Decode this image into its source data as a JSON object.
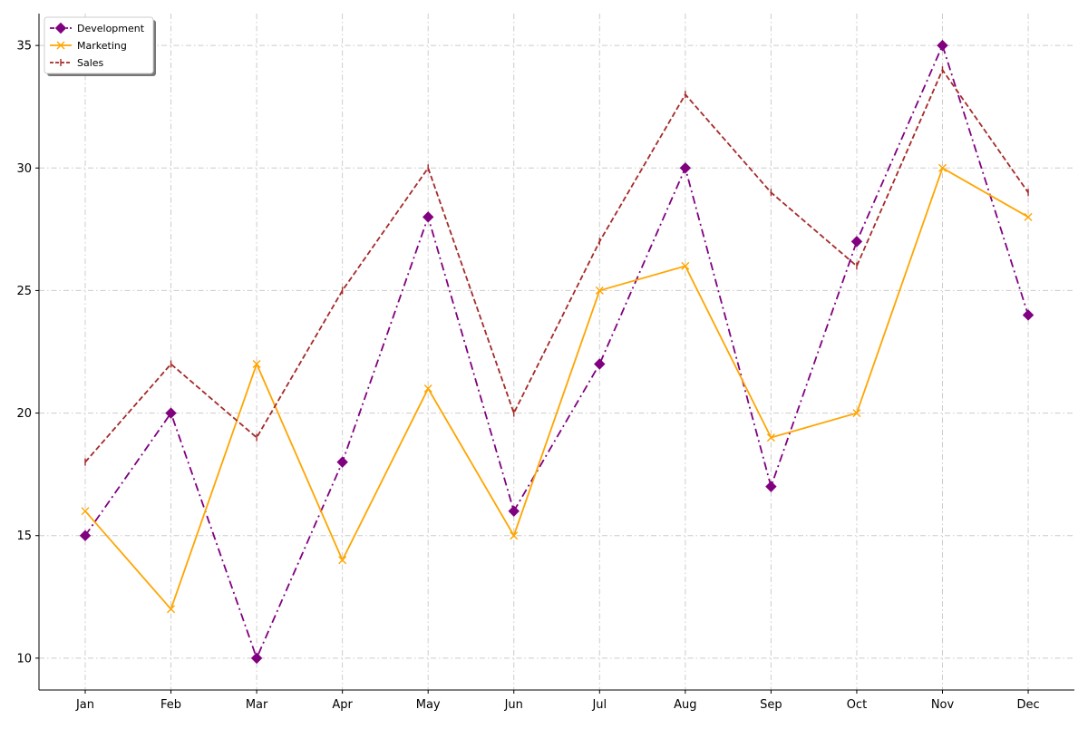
{
  "chart_data": {
    "type": "line",
    "categories": [
      "Jan",
      "Feb",
      "Mar",
      "Apr",
      "May",
      "Jun",
      "Jul",
      "Aug",
      "Sep",
      "Oct",
      "Nov",
      "Dec"
    ],
    "y_ticks": [
      10,
      15,
      20,
      25,
      30,
      35
    ],
    "ylim": [
      8.7,
      36.3
    ],
    "grid": true,
    "legend_position": "top-left",
    "series": [
      {
        "name": "Development",
        "color": "#800080",
        "marker": "diamond",
        "line_style": "dash-dot",
        "values": [
          15,
          20,
          10,
          18,
          28,
          16,
          22,
          30,
          17,
          27,
          35,
          24
        ]
      },
      {
        "name": "Marketing",
        "color": "#FFA500",
        "marker": "x",
        "line_style": "solid",
        "values": [
          16,
          12,
          22,
          14,
          21,
          15,
          25,
          26,
          19,
          20,
          30,
          28
        ]
      },
      {
        "name": "Sales",
        "color": "#A52A2A",
        "marker": "tick",
        "line_style": "dashed",
        "values": [
          18,
          22,
          19,
          25,
          30,
          20,
          27,
          33,
          29,
          26,
          34,
          29
        ]
      }
    ]
  }
}
